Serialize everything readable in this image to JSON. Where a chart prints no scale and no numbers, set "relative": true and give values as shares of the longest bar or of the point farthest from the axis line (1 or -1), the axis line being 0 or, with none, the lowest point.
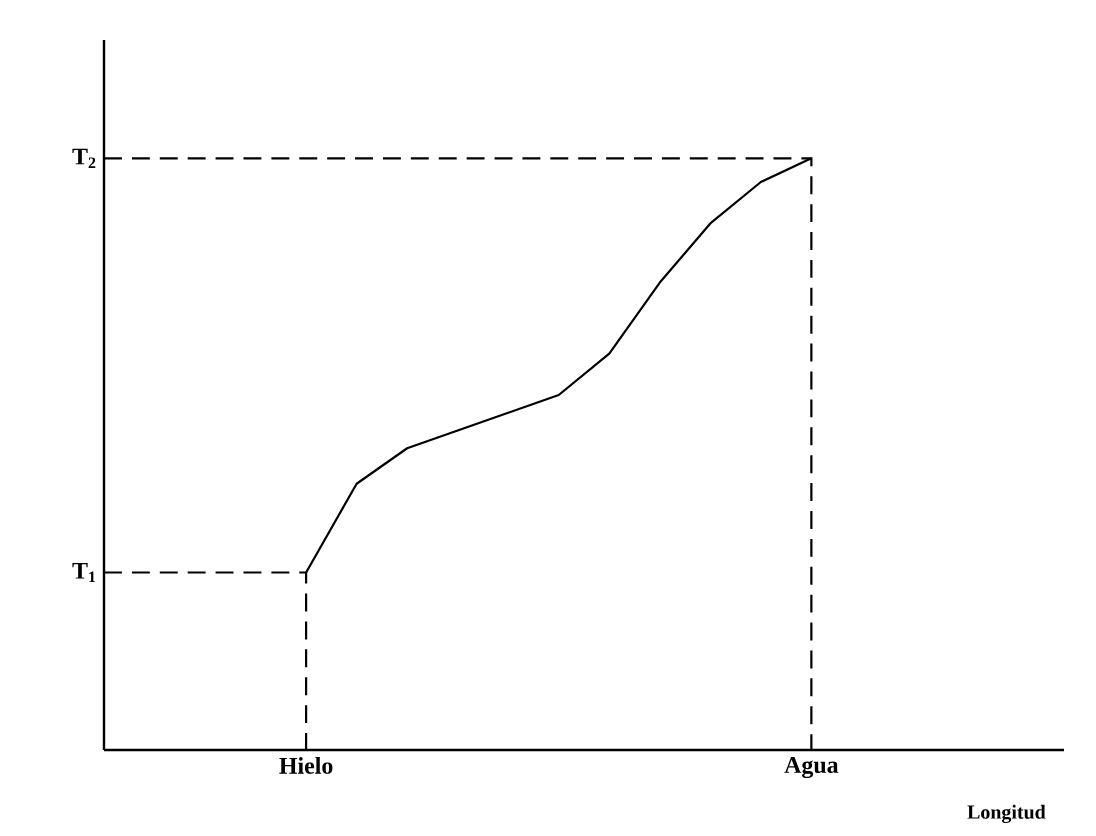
{
  "chart_data": {
    "type": "line",
    "xlabel": "Longitud",
    "relative": true,
    "categories": [
      null,
      null,
      null,
      null,
      "Hielo",
      null,
      null,
      null,
      null,
      null,
      null,
      null,
      null,
      null,
      "Agua",
      null,
      null,
      null,
      null,
      null
    ],
    "marker": "none",
    "ref_lines": [
      {
        "axis": "y",
        "value": 0.3,
        "label": "T$_{1}$",
        "line_style": "dashed"
      },
      {
        "axis": "y",
        "value": 1.0,
        "label": "T$_{2}$",
        "line_style": "dashed"
      }
    ],
    "series": [
      {
        "color": "#000000",
        "values": [
          null,
          null,
          null,
          null,
          0.3,
          0.45,
          0.51,
          0.54,
          0.57,
          0.6,
          0.67,
          0.79,
          0.89,
          0.96,
          1.0,
          null,
          null,
          null,
          null,
          null
        ]
      }
    ]
  }
}
